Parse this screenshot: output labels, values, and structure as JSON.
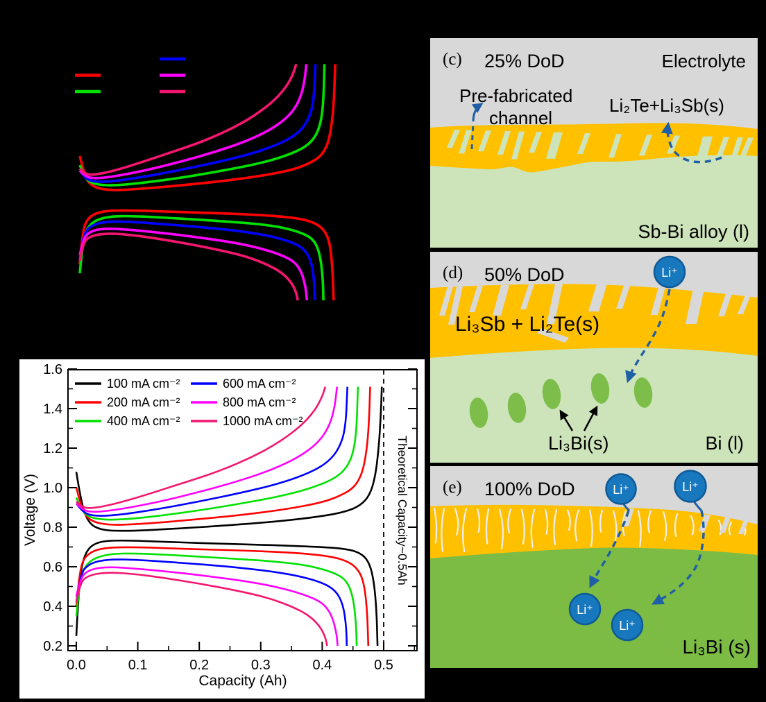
{
  "colors": {
    "background": "#000000",
    "electrolyte_gray": "#D8D8D8",
    "alloy_orange": "#FFC000",
    "liquid_green_light": "#CDE3BA",
    "precipitate_green": "#7DBE4A",
    "li3bi_green": "#7CBC45",
    "li_ion_blue": "#1878BE",
    "arrow_blue": "#1F5FA5",
    "chart_bg": "#FFFFFF"
  },
  "chart_data": {
    "type": "line",
    "x_unit": "Ah",
    "y_unit": "V",
    "series": [
      {
        "name": "100 mA cm⁻²",
        "color": "#000000",
        "charge": [
          [
            0,
            1.08
          ],
          [
            0.008,
            0.92
          ],
          [
            0.02,
            0.82
          ],
          [
            0.04,
            0.785
          ],
          [
            0.08,
            0.78
          ],
          [
            0.15,
            0.79
          ],
          [
            0.25,
            0.81
          ],
          [
            0.33,
            0.83
          ],
          [
            0.4,
            0.855
          ],
          [
            0.44,
            0.88
          ],
          [
            0.462,
            0.91
          ],
          [
            0.477,
            0.96
          ],
          [
            0.486,
            1.05
          ],
          [
            0.492,
            1.2
          ],
          [
            0.495,
            1.35
          ],
          [
            0.497,
            1.51
          ]
        ],
        "discharge": [
          [
            0,
            0.25
          ],
          [
            0.004,
            0.5
          ],
          [
            0.012,
            0.66
          ],
          [
            0.03,
            0.725
          ],
          [
            0.07,
            0.735
          ],
          [
            0.15,
            0.725
          ],
          [
            0.25,
            0.715
          ],
          [
            0.33,
            0.708
          ],
          [
            0.4,
            0.7
          ],
          [
            0.44,
            0.69
          ],
          [
            0.462,
            0.67
          ],
          [
            0.475,
            0.63
          ],
          [
            0.483,
            0.55
          ],
          [
            0.488,
            0.4
          ],
          [
            0.49,
            0.2
          ]
        ]
      },
      {
        "name": "200 mA cm⁻²",
        "color": "#FF0000",
        "charge": [
          [
            0,
            1.0
          ],
          [
            0.008,
            0.9
          ],
          [
            0.02,
            0.835
          ],
          [
            0.05,
            0.81
          ],
          [
            0.1,
            0.815
          ],
          [
            0.18,
            0.835
          ],
          [
            0.27,
            0.862
          ],
          [
            0.34,
            0.89
          ],
          [
            0.4,
            0.925
          ],
          [
            0.43,
            0.96
          ],
          [
            0.452,
            1.0
          ],
          [
            0.465,
            1.07
          ],
          [
            0.472,
            1.18
          ],
          [
            0.476,
            1.32
          ],
          [
            0.478,
            1.51
          ]
        ],
        "discharge": [
          [
            0,
            0.4
          ],
          [
            0.005,
            0.58
          ],
          [
            0.015,
            0.66
          ],
          [
            0.04,
            0.695
          ],
          [
            0.09,
            0.7
          ],
          [
            0.18,
            0.69
          ],
          [
            0.27,
            0.682
          ],
          [
            0.35,
            0.672
          ],
          [
            0.41,
            0.655
          ],
          [
            0.44,
            0.63
          ],
          [
            0.458,
            0.59
          ],
          [
            0.468,
            0.52
          ],
          [
            0.473,
            0.38
          ],
          [
            0.475,
            0.2
          ]
        ]
      },
      {
        "name": "400 mA cm⁻²",
        "color": "#00E100",
        "charge": [
          [
            0,
            0.95
          ],
          [
            0.008,
            0.89
          ],
          [
            0.02,
            0.85
          ],
          [
            0.05,
            0.835
          ],
          [
            0.1,
            0.845
          ],
          [
            0.18,
            0.875
          ],
          [
            0.26,
            0.915
          ],
          [
            0.33,
            0.955
          ],
          [
            0.38,
            0.995
          ],
          [
            0.42,
            1.045
          ],
          [
            0.44,
            1.1
          ],
          [
            0.451,
            1.18
          ],
          [
            0.456,
            1.3
          ],
          [
            0.458,
            1.51
          ]
        ],
        "discharge": [
          [
            0,
            0.35
          ],
          [
            0.006,
            0.55
          ],
          [
            0.02,
            0.63
          ],
          [
            0.05,
            0.665
          ],
          [
            0.1,
            0.668
          ],
          [
            0.18,
            0.655
          ],
          [
            0.26,
            0.64
          ],
          [
            0.33,
            0.625
          ],
          [
            0.38,
            0.605
          ],
          [
            0.42,
            0.57
          ],
          [
            0.44,
            0.53
          ],
          [
            0.45,
            0.45
          ],
          [
            0.455,
            0.32
          ],
          [
            0.456,
            0.2
          ]
        ]
      },
      {
        "name": "600 mA cm⁻²",
        "color": "#0000FF",
        "charge": [
          [
            0,
            0.92
          ],
          [
            0.01,
            0.875
          ],
          [
            0.03,
            0.855
          ],
          [
            0.07,
            0.862
          ],
          [
            0.13,
            0.89
          ],
          [
            0.2,
            0.93
          ],
          [
            0.27,
            0.975
          ],
          [
            0.33,
            1.02
          ],
          [
            0.38,
            1.075
          ],
          [
            0.41,
            1.13
          ],
          [
            0.428,
            1.2
          ],
          [
            0.438,
            1.3
          ],
          [
            0.441,
            1.51
          ]
        ],
        "discharge": [
          [
            0,
            0.42
          ],
          [
            0.006,
            0.56
          ],
          [
            0.02,
            0.615
          ],
          [
            0.05,
            0.638
          ],
          [
            0.1,
            0.635
          ],
          [
            0.17,
            0.62
          ],
          [
            0.25,
            0.6
          ],
          [
            0.31,
            0.58
          ],
          [
            0.36,
            0.555
          ],
          [
            0.4,
            0.52
          ],
          [
            0.422,
            0.48
          ],
          [
            0.434,
            0.41
          ],
          [
            0.439,
            0.3
          ],
          [
            0.44,
            0.2
          ]
        ]
      },
      {
        "name": "800 mA cm⁻²",
        "color": "#FF00FF",
        "charge": [
          [
            0,
            0.92
          ],
          [
            0.01,
            0.885
          ],
          [
            0.03,
            0.875
          ],
          [
            0.07,
            0.89
          ],
          [
            0.13,
            0.925
          ],
          [
            0.19,
            0.97
          ],
          [
            0.25,
            1.02
          ],
          [
            0.31,
            1.08
          ],
          [
            0.36,
            1.15
          ],
          [
            0.395,
            1.23
          ],
          [
            0.413,
            1.32
          ],
          [
            0.421,
            1.42
          ],
          [
            0.424,
            1.51
          ]
        ],
        "discharge": [
          [
            0,
            0.45
          ],
          [
            0.006,
            0.54
          ],
          [
            0.02,
            0.585
          ],
          [
            0.05,
            0.6
          ],
          [
            0.1,
            0.59
          ],
          [
            0.16,
            0.572
          ],
          [
            0.22,
            0.55
          ],
          [
            0.28,
            0.525
          ],
          [
            0.33,
            0.495
          ],
          [
            0.37,
            0.46
          ],
          [
            0.4,
            0.42
          ],
          [
            0.415,
            0.36
          ],
          [
            0.423,
            0.27
          ],
          [
            0.425,
            0.2
          ]
        ]
      },
      {
        "name": "1000 mA cm⁻²",
        "color": "#F4156F",
        "charge": [
          [
            0,
            0.93
          ],
          [
            0.01,
            0.9
          ],
          [
            0.025,
            0.895
          ],
          [
            0.06,
            0.915
          ],
          [
            0.11,
            0.96
          ],
          [
            0.17,
            1.02
          ],
          [
            0.23,
            1.08
          ],
          [
            0.29,
            1.16
          ],
          [
            0.33,
            1.23
          ],
          [
            0.365,
            1.31
          ],
          [
            0.388,
            1.39
          ],
          [
            0.4,
            1.46
          ],
          [
            0.405,
            1.51
          ]
        ],
        "discharge": [
          [
            0,
            0.42
          ],
          [
            0.006,
            0.52
          ],
          [
            0.02,
            0.557
          ],
          [
            0.05,
            0.572
          ],
          [
            0.09,
            0.565
          ],
          [
            0.14,
            0.545
          ],
          [
            0.2,
            0.515
          ],
          [
            0.26,
            0.48
          ],
          [
            0.31,
            0.445
          ],
          [
            0.35,
            0.4
          ],
          [
            0.378,
            0.355
          ],
          [
            0.396,
            0.3
          ],
          [
            0.405,
            0.245
          ],
          [
            0.408,
            0.2
          ]
        ]
      }
    ],
    "top_chart": {
      "axes_visible": false,
      "background": "#000000",
      "legend_swatches_only": true
    },
    "bottom_chart": {
      "xlabel": "Capacity (Ah)",
      "ylabel": "Voltage (V)",
      "xticks": [
        "0.0",
        "0.1",
        "0.2",
        "0.3",
        "0.4",
        "0.5"
      ],
      "yticks": [
        "0.2",
        "0.4",
        "0.6",
        "0.8",
        "1.0",
        "1.2",
        "1.4",
        "1.6"
      ],
      "xlim": [
        -0.014,
        0.554
      ],
      "ylim": [
        0.175,
        1.6
      ],
      "grid": false,
      "legend_position": "top-left",
      "annotation": "Theoretical Capacity~0.5Ah",
      "annotation_x": 0.5,
      "background": "#FFFFFF"
    }
  },
  "panels": {
    "c": {
      "tag": "(c)",
      "dod": "25% DoD",
      "electrolyte": "Electrolyte",
      "channel_line1": "Pre-fabricated",
      "channel_line2": "channel",
      "surface_product": "Li₂Te+Li₃Sb(s)",
      "bulk": "Sb-Bi alloy (l)"
    },
    "d": {
      "tag": "(d)",
      "dod": "50% DoD",
      "surface_layer": "Li₃Sb + Li₂Te(s)",
      "li_ion": "Li⁺",
      "precipitate": "Li₃Bi(s)",
      "bulk": "Bi (l)"
    },
    "e": {
      "tag": "(e)",
      "dod": "100% DoD",
      "li_ion": "Li⁺",
      "bulk": "Li₃Bi (s)"
    }
  }
}
